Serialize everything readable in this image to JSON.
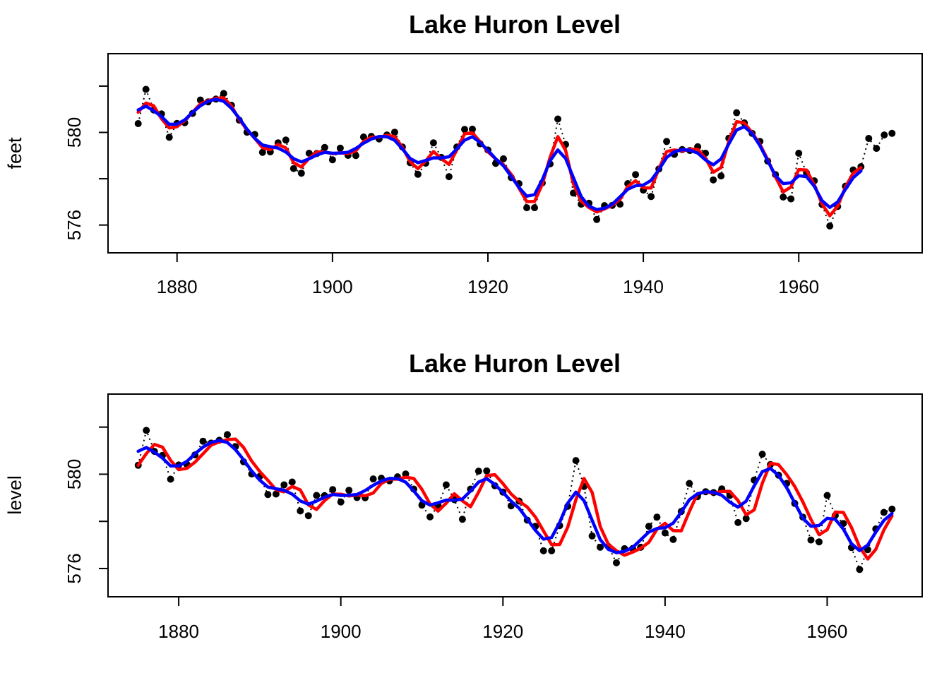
{
  "figure": {
    "background": "#FFFFFF",
    "axis_color": "#000000",
    "observed_color": "#000000",
    "red_color": "#FF0000",
    "blue_color": "#0000FF"
  },
  "chart_data": [
    {
      "type": "line",
      "title": "Lake Huron Level",
      "xlabel": "",
      "ylabel": "feet",
      "x_start_year": 1875,
      "x_end_year": 1972,
      "xlim": [
        1871.12,
        1975.88
      ],
      "ylim": [
        574.8,
        583.4
      ],
      "x_ticks": [
        1880,
        1900,
        1920,
        1940,
        1960
      ],
      "x_tick_labels": [
        "1880",
        "1900",
        "1920",
        "1940",
        "1960"
      ],
      "y_ticks": [
        576,
        578,
        580,
        582
      ],
      "y_tick_labels": [
        "576",
        "",
        "580",
        ""
      ],
      "grid": false,
      "legend": "none",
      "series": [
        {
          "name": "observed-level",
          "style": "points+dotted-line",
          "marker": "filled-circle",
          "color": "#000000",
          "values": [
            580.38,
            581.86,
            580.97,
            580.8,
            579.79,
            580.39,
            580.42,
            580.82,
            581.4,
            581.32,
            581.44,
            581.68,
            581.17,
            580.53,
            580.01,
            579.91,
            579.14,
            579.16,
            579.55,
            579.67,
            578.44,
            578.24,
            579.1,
            579.09,
            579.35,
            578.82,
            579.32,
            579.01,
            579.0,
            579.8,
            579.83,
            579.72,
            579.89,
            580.01,
            579.37,
            578.69,
            578.19,
            578.67,
            579.55,
            578.92,
            578.09,
            579.37,
            580.13,
            580.14,
            579.51,
            579.24,
            578.66,
            578.86,
            578.05,
            577.79,
            576.75,
            576.75,
            577.82,
            578.64,
            580.58,
            579.48,
            577.38,
            576.9,
            576.94,
            576.24,
            576.84,
            576.85,
            576.9,
            577.79,
            578.18,
            577.51,
            577.23,
            578.42,
            579.61,
            579.05,
            579.26,
            579.22,
            579.38,
            579.1,
            577.95,
            578.12,
            579.75,
            580.85,
            580.41,
            579.96,
            579.61,
            578.76,
            578.18,
            577.21,
            577.13,
            579.1,
            578.25,
            577.91,
            576.89,
            575.96,
            576.8,
            577.68,
            578.38,
            578.52,
            579.74,
            579.31,
            579.89,
            579.96
          ]
        },
        {
          "name": "red-smoother",
          "style": "thick-line",
          "color": "#FF0000",
          "derived_from": "observed-level",
          "smoother": {
            "type": "weighted_moving_average",
            "weights": [
              1,
              2,
              1
            ],
            "offsets": [
              -1,
              0,
              1
            ],
            "computed_on_first_n": 94
          }
        },
        {
          "name": "blue-smoother",
          "style": "thick-line",
          "color": "#0000FF",
          "derived_from": "observed-level",
          "smoother": {
            "type": "weighted_moving_average",
            "weights": [
              1,
              2,
              3,
              2,
              1
            ],
            "offsets": [
              -2,
              -1,
              0,
              1,
              2
            ],
            "computed_on_first_n": 94
          }
        }
      ]
    },
    {
      "type": "line",
      "title": "Lake Huron Level",
      "xlabel": "",
      "ylabel": "level",
      "x_start_year": 1875,
      "x_end_year": 1968,
      "xlim": [
        1871.28,
        1971.72
      ],
      "ylim": [
        574.8,
        583.4
      ],
      "x_ticks": [
        1880,
        1900,
        1920,
        1940,
        1960
      ],
      "x_tick_labels": [
        "1880",
        "1900",
        "1920",
        "1940",
        "1960"
      ],
      "y_ticks": [
        576,
        578,
        580,
        582
      ],
      "y_tick_labels": [
        "576",
        "",
        "580",
        ""
      ],
      "grid": false,
      "legend": "none",
      "series": [
        {
          "name": "observed-level",
          "style": "points+dotted-line",
          "marker": "filled-circle",
          "color": "#000000",
          "values": [
            580.38,
            581.86,
            580.97,
            580.8,
            579.79,
            580.39,
            580.42,
            580.82,
            581.4,
            581.32,
            581.44,
            581.68,
            581.17,
            580.53,
            580.01,
            579.91,
            579.14,
            579.16,
            579.55,
            579.67,
            578.44,
            578.24,
            579.1,
            579.09,
            579.35,
            578.82,
            579.32,
            579.01,
            579.0,
            579.8,
            579.83,
            579.72,
            579.89,
            580.01,
            579.37,
            578.69,
            578.19,
            578.67,
            579.55,
            578.92,
            578.09,
            579.37,
            580.13,
            580.14,
            579.51,
            579.24,
            578.66,
            578.86,
            578.05,
            577.79,
            576.75,
            576.75,
            577.82,
            578.64,
            580.58,
            579.48,
            577.38,
            576.9,
            576.94,
            576.24,
            576.84,
            576.85,
            576.9,
            577.79,
            578.18,
            577.51,
            577.23,
            578.42,
            579.61,
            579.05,
            579.26,
            579.22,
            579.38,
            579.1,
            577.95,
            578.12,
            579.75,
            580.85,
            580.41,
            579.96,
            579.61,
            578.76,
            578.18,
            577.21,
            577.13,
            579.1,
            578.25,
            577.91,
            576.89,
            575.96,
            576.8,
            577.68,
            578.38,
            578.52
          ]
        },
        {
          "name": "red-smoother-lagged",
          "style": "thick-line",
          "color": "#FF0000",
          "derived_from": "observed-level",
          "smoother": {
            "type": "weighted_moving_average",
            "weights": [
              1,
              2,
              1
            ],
            "offsets": [
              -2,
              -1,
              0
            ],
            "computed_on_first_n": 94
          }
        },
        {
          "name": "blue-smoother",
          "style": "thick-line",
          "color": "#0000FF",
          "derived_from": "observed-level",
          "smoother": {
            "type": "weighted_moving_average",
            "weights": [
              1,
              2,
              3,
              2,
              1
            ],
            "offsets": [
              -2,
              -1,
              0,
              1,
              2
            ],
            "computed_on_first_n": 94
          }
        }
      ]
    }
  ]
}
